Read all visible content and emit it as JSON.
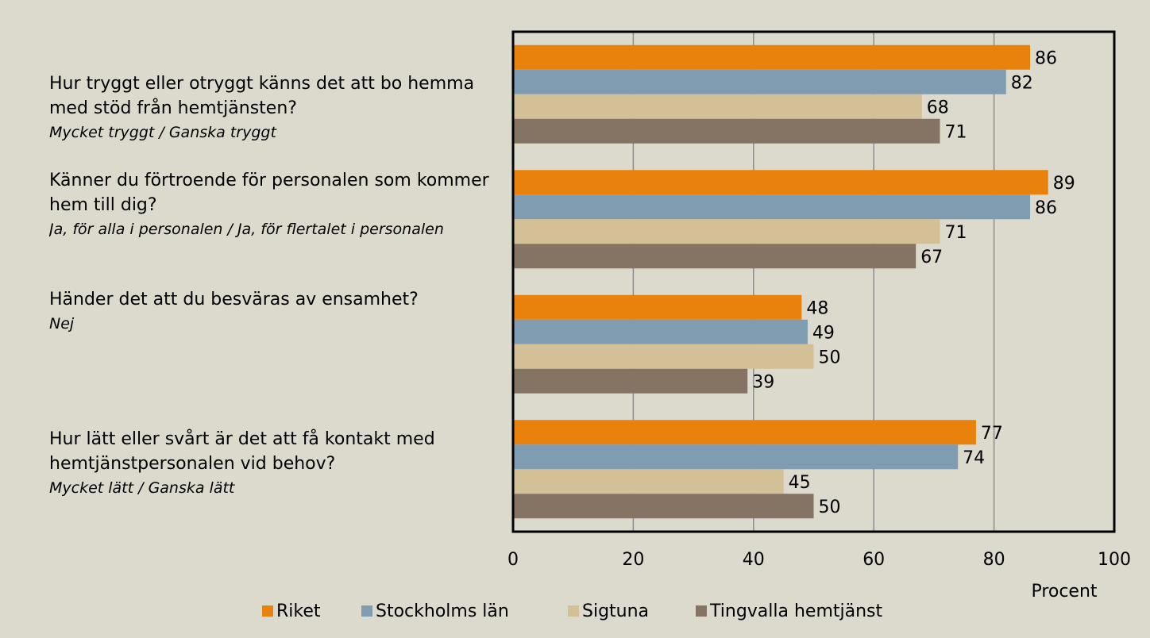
{
  "chart_data": {
    "type": "bar",
    "orientation": "horizontal",
    "categories": [
      "Hur tryggt eller otryggt känns det att bo hemma med stöd från hemtjänsten?",
      "Känner du förtroende för personalen som kommer hem till dig?",
      "Händer det att du besväras av ensamhet?",
      "Hur lätt eller svårt är det att få kontakt med hemtjänstpersonalen vid behov?"
    ],
    "category_answers": [
      "Mycket tryggt / Ganska tryggt",
      "Ja, för alla i personalen / Ja, för flertalet i personalen",
      "Nej",
      "Mycket lätt / Ganska lätt"
    ],
    "series": [
      {
        "name": "Riket",
        "color": "#e8820c",
        "values": [
          86,
          89,
          48,
          77
        ]
      },
      {
        "name": "Stockholms län",
        "color": "#7f9cb0",
        "values": [
          82,
          86,
          49,
          74
        ]
      },
      {
        "name": "Sigtuna",
        "color": "#d4c096",
        "values": [
          68,
          71,
          50,
          45
        ]
      },
      {
        "name": "Tingvalla hemtjänst",
        "color": "#857463",
        "values": [
          71,
          67,
          39,
          50
        ]
      }
    ],
    "xlabel": "Procent",
    "xlim": [
      0,
      100
    ],
    "xticks": [
      0,
      20,
      40,
      60,
      80,
      100
    ],
    "grid": true,
    "legend": "bottom"
  }
}
